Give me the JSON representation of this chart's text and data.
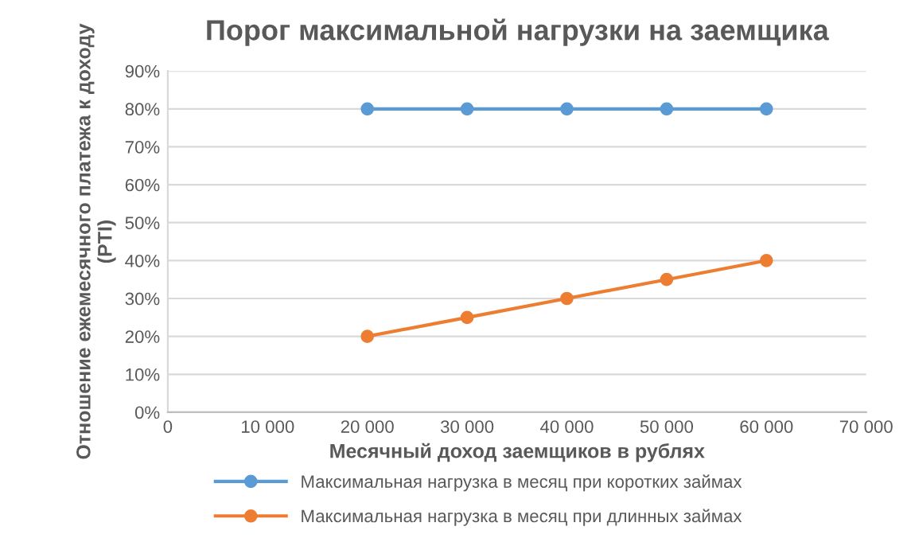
{
  "chart_data": {
    "type": "line",
    "title": "Порог максимальной нагрузки на заемщика",
    "xlabel": "Месячный доход заемщиков в рублях",
    "ylabel": "Отношение ежемесячного платежа к доходу (PTI)",
    "x": [
      20000,
      30000,
      40000,
      50000,
      60000
    ],
    "series": [
      {
        "name": "Максимальная нагрузка в месяц при коротких займах",
        "color": "#5b9bd5",
        "values": [
          80,
          80,
          80,
          80,
          80
        ]
      },
      {
        "name": "Максимальная нагрузка в месяц при длинных займах",
        "color": "#ed7d31",
        "values": [
          20,
          25,
          30,
          35,
          40
        ]
      }
    ],
    "xlim": [
      0,
      70000
    ],
    "xticks": [
      {
        "value": 0,
        "label": "0"
      },
      {
        "value": 10000,
        "label": "10 000"
      },
      {
        "value": 20000,
        "label": "20 000"
      },
      {
        "value": 30000,
        "label": "30 000"
      },
      {
        "value": 40000,
        "label": "40 000"
      },
      {
        "value": 50000,
        "label": "50 000"
      },
      {
        "value": 60000,
        "label": "60 000"
      },
      {
        "value": 70000,
        "label": "70 000"
      }
    ],
    "ylim": [
      0,
      90
    ],
    "yticks": [
      {
        "value": 0,
        "label": "0%"
      },
      {
        "value": 10,
        "label": "10%"
      },
      {
        "value": 20,
        "label": "20%"
      },
      {
        "value": 30,
        "label": "30%"
      },
      {
        "value": 40,
        "label": "40%"
      },
      {
        "value": 50,
        "label": "50%"
      },
      {
        "value": 60,
        "label": "60%"
      },
      {
        "value": 70,
        "label": "70%"
      },
      {
        "value": 80,
        "label": "80%"
      },
      {
        "value": 90,
        "label": "90%"
      }
    ],
    "grid": "y",
    "legend": "bottom",
    "marker": "circle",
    "line_style": "solid"
  }
}
